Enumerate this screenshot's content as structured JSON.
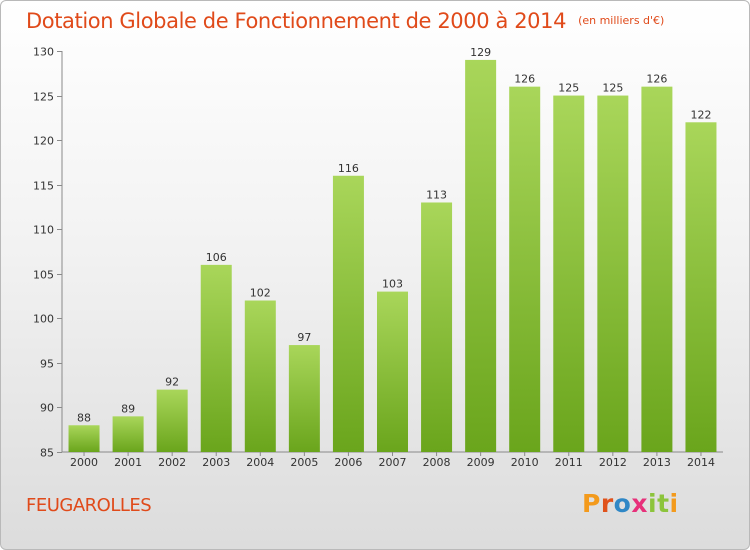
{
  "header": {
    "title": "Dotation Globale de Fonctionnement de 2000 à 2014",
    "subtitle": "(en milliers d'€)"
  },
  "footer": {
    "commune": "FEUGAROLLES",
    "brand": "Proxiti",
    "brand_colors": [
      "#f39a1c",
      "#e0521b",
      "#2f87c6",
      "#e7307a",
      "#8cc43c",
      "#8cc43c",
      "#f39a1c"
    ]
  },
  "colors": {
    "bar_light": "#a9d65a",
    "bar_dark": "#6aa51c",
    "accent": "#e04a1a"
  },
  "chart_data": {
    "type": "bar",
    "categories": [
      "2000",
      "2001",
      "2002",
      "2003",
      "2004",
      "2005",
      "2006",
      "2007",
      "2008",
      "2009",
      "2010",
      "2011",
      "2012",
      "2013",
      "2014"
    ],
    "values": [
      88,
      89,
      92,
      106,
      102,
      97,
      116,
      103,
      113,
      129,
      126,
      125,
      125,
      126,
      122
    ],
    "yticks": [
      85,
      90,
      95,
      100,
      105,
      110,
      115,
      120,
      125,
      130
    ],
    "ylim": [
      85,
      130
    ],
    "grid": false
  }
}
